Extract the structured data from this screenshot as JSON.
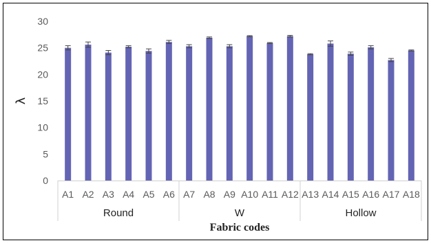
{
  "chart_data": {
    "type": "bar",
    "categories": [
      "A1",
      "A2",
      "A3",
      "A4",
      "A5",
      "A6",
      "A7",
      "A8",
      "A9",
      "A10",
      "A11",
      "A12",
      "A13",
      "A14",
      "A15",
      "A16",
      "A17",
      "A18"
    ],
    "groups": [
      {
        "name": "Round",
        "categories": [
          "A1",
          "A2",
          "A3",
          "A4",
          "A5",
          "A6"
        ]
      },
      {
        "name": "W",
        "categories": [
          "A7",
          "A8",
          "A9",
          "A10",
          "A11",
          "A12"
        ]
      },
      {
        "name": "Hollow",
        "categories": [
          "A13",
          "A14",
          "A15",
          "A16",
          "A17",
          "A18"
        ]
      }
    ],
    "series": [
      {
        "values": [
          25.0,
          25.6,
          24.1,
          25.2,
          24.4,
          26.1,
          25.3,
          26.9,
          25.3,
          27.2,
          25.9,
          27.2,
          23.8,
          25.8,
          23.9,
          25.1,
          22.7,
          24.5
        ],
        "errors": [
          0.4,
          0.5,
          0.4,
          0.2,
          0.4,
          0.3,
          0.3,
          0.15,
          0.3,
          0.1,
          0.1,
          0.15,
          0.1,
          0.5,
          0.3,
          0.3,
          0.3,
          0.1
        ],
        "color": "#6464b4"
      }
    ],
    "xlabel": "Fabric codes",
    "ylabel": "λ",
    "ylim": [
      0,
      30
    ],
    "yticks": [
      0,
      5,
      10,
      15,
      20,
      25,
      30
    ],
    "grid": false,
    "legend": "none"
  }
}
